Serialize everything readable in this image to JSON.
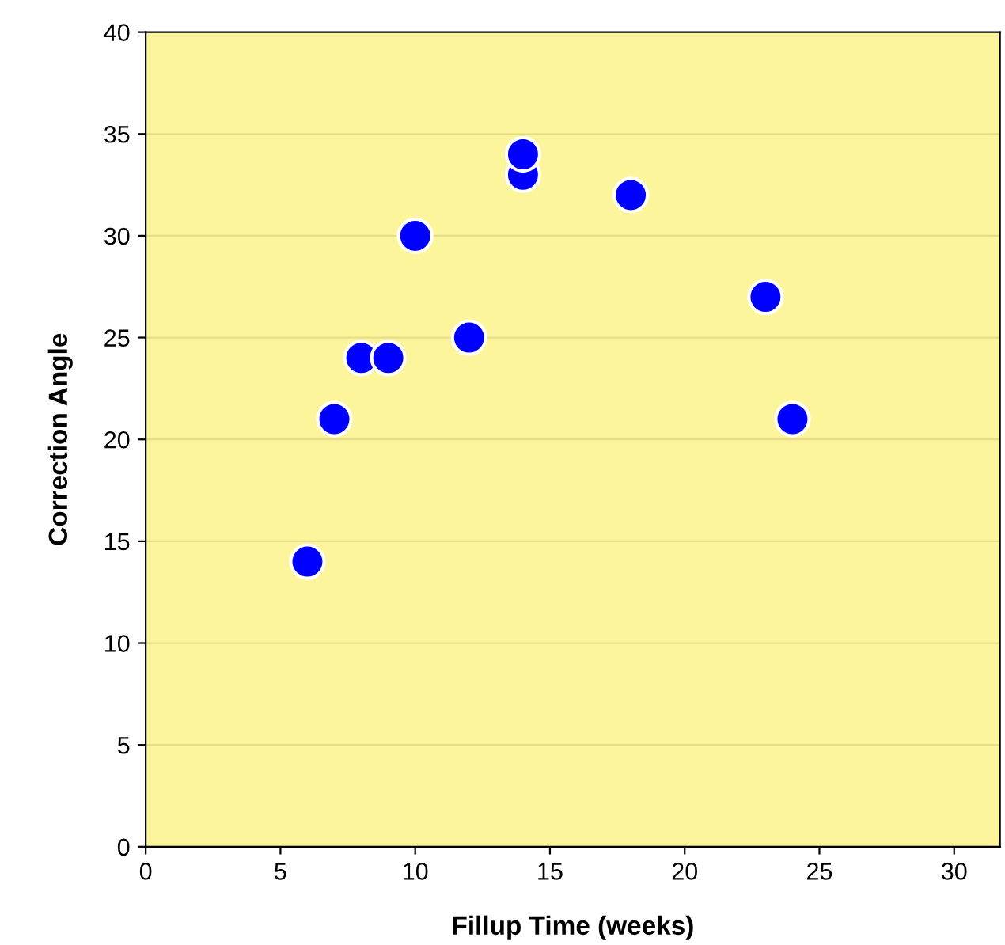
{
  "chart_data": {
    "type": "scatter",
    "xlabel": "Fillup Time (weeks)",
    "ylabel": "Correction Angle",
    "x": [
      6,
      7,
      8,
      9,
      10,
      12,
      14,
      14,
      18,
      23,
      24
    ],
    "series": [
      {
        "color": "#0000ff",
        "values": [
          14,
          21,
          24,
          24,
          30,
          25,
          33,
          34,
          32,
          27,
          21
        ]
      }
    ],
    "xlim": [
      0,
      31.7
    ],
    "ylim": [
      0,
      40
    ],
    "xticks": [
      0,
      5,
      10,
      15,
      20,
      25,
      30
    ],
    "yticks": [
      0,
      5,
      10,
      15,
      20,
      25,
      30,
      35,
      40
    ],
    "grid": "y",
    "marker": "circle",
    "legend": false
  }
}
